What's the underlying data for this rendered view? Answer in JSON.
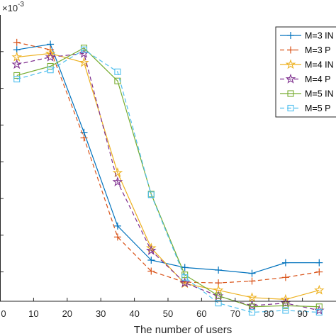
{
  "chart_data": {
    "type": "line",
    "title": "",
    "xlabel": "The number of users",
    "ylabel": "",
    "y_exponent_label": "×10",
    "y_exponent_power": "-3",
    "xlim": [
      0,
      100
    ],
    "ylim": [
      0.2,
      8.0
    ],
    "x_ticks": [
      0,
      10,
      20,
      30,
      40,
      50,
      60,
      70,
      80,
      90
    ],
    "x_tick_labels": [
      "0",
      "10",
      "20",
      "30",
      "40",
      "50",
      "60",
      "70",
      "80",
      "90"
    ],
    "y_ticks": [
      1,
      2,
      3,
      4,
      5,
      6,
      7
    ],
    "grid": false,
    "legend_position": "top-right",
    "x": [
      5,
      15,
      25,
      35,
      45,
      55,
      65,
      75,
      85,
      95
    ],
    "series": [
      {
        "name": "M=3 IN",
        "color": "#0072BD",
        "dash": "solid",
        "marker": "plus",
        "values": [
          7.05,
          7.2,
          4.8,
          2.25,
          1.32,
          1.12,
          1.05,
          0.96,
          1.25,
          1.25
        ]
      },
      {
        "name": "M=3 P",
        "color": "#D95319",
        "dash": "dashed",
        "marker": "plus",
        "values": [
          7.25,
          7.05,
          4.65,
          1.95,
          1.02,
          0.72,
          0.7,
          0.75,
          0.85,
          1.0
        ]
      },
      {
        "name": "M=4 IN",
        "color": "#EDB120",
        "dash": "solid",
        "marker": "star",
        "values": [
          6.85,
          6.95,
          6.7,
          3.7,
          1.65,
          0.68,
          0.5,
          0.3,
          0.25,
          0.5
        ]
      },
      {
        "name": "M=4 P",
        "color": "#7E2F8E",
        "dash": "dashed",
        "marker": "star",
        "values": [
          6.65,
          6.85,
          6.95,
          3.45,
          1.58,
          0.7,
          0.34,
          0.08,
          0.15,
          -0.05
        ]
      },
      {
        "name": "M=5 IN",
        "color": "#77AC30",
        "dash": "solid",
        "marker": "square",
        "values": [
          6.35,
          6.6,
          7.1,
          6.2,
          3.12,
          0.92,
          0.35,
          0.05,
          0.08,
          0.05
        ]
      },
      {
        "name": "M=5 P",
        "color": "#4DBEEE",
        "dash": "dashed",
        "marker": "square",
        "values": [
          6.25,
          6.5,
          7.05,
          6.45,
          3.1,
          0.85,
          0.15,
          -0.1,
          -0.05,
          -0.1
        ]
      }
    ]
  }
}
